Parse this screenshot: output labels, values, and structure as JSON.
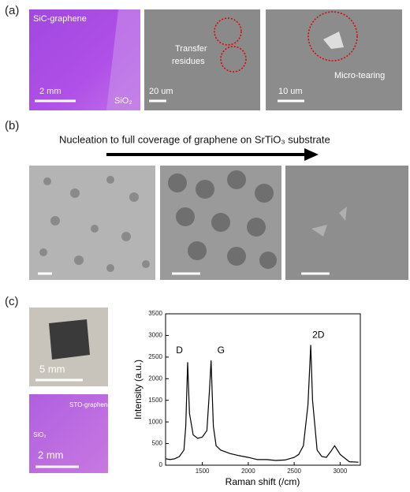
{
  "panels": {
    "a": {
      "label": "(a)",
      "image1_label": "SiC-graphene",
      "image1_scale": "2 mm",
      "image1_substrate": "SiO₂",
      "image2_annotation": "Transfer\nresidues",
      "image2_scale": "20 um",
      "image3_annotation": "Micro-tearing",
      "image3_scale": "10 um"
    },
    "b": {
      "label": "(b)",
      "arrow_text": "Nucleation to full coverage of graphene on SrTiO₃ substrate"
    },
    "c": {
      "label": "(c)",
      "photo_scale": "5 mm",
      "image_label": "STO-graphene",
      "image_substrate": "SiO₂",
      "image_scale": "2 mm"
    }
  },
  "chart_data": {
    "type": "line",
    "x_label": "Raman shift (/cm)",
    "y_label": "Intensity (a.u.)",
    "x": [
      1100,
      1150,
      1200,
      1250,
      1300,
      1320,
      1340,
      1360,
      1400,
      1450,
      1500,
      1550,
      1580,
      1595,
      1620,
      1650,
      1700,
      1800,
      1900,
      2000,
      2100,
      2200,
      2300,
      2400,
      2500,
      2550,
      2600,
      2650,
      2680,
      2700,
      2750,
      2800,
      2850,
      2900,
      2940,
      3000,
      3100,
      3200
    ],
    "series": [
      {
        "color": "#000000",
        "values": [
          150,
          130,
          150,
          200,
          350,
          900,
          2380,
          1200,
          700,
          620,
          650,
          800,
          1800,
          2420,
          900,
          450,
          350,
          270,
          220,
          180,
          130,
          130,
          110,
          120,
          180,
          250,
          450,
          1400,
          2780,
          1500,
          350,
          200,
          180,
          320,
          450,
          250,
          80,
          70
        ]
      }
    ],
    "annotations": [
      "D",
      "G",
      "2D"
    ],
    "xlim": [
      1100,
      3220
    ],
    "ylim": [
      0,
      3500
    ],
    "xticks": [
      1500,
      2000,
      2500,
      3000
    ],
    "yticks": [
      0,
      500,
      1000,
      1500,
      2000,
      2500,
      3000,
      3500
    ]
  }
}
